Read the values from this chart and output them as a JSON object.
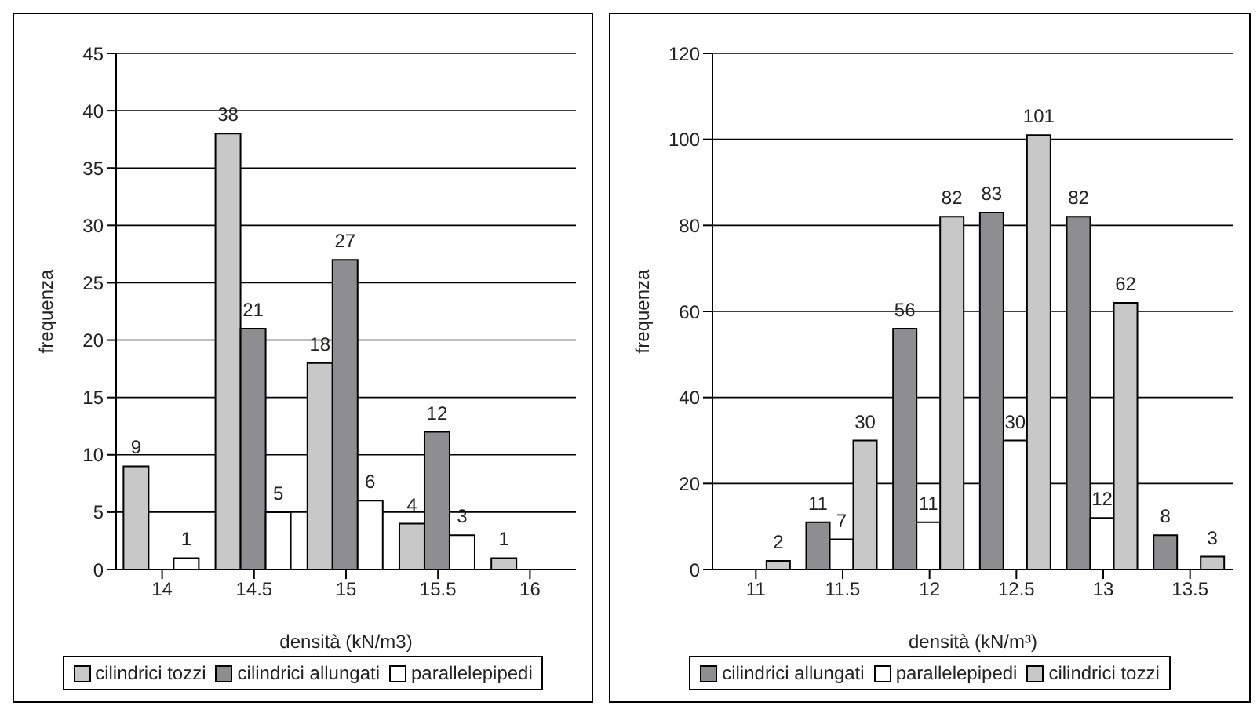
{
  "chart_data": [
    {
      "type": "bar",
      "xlabel": "densità (kN/m3)",
      "ylabel": "frequenza",
      "categories": [
        "14",
        "14.5",
        "15",
        "15.5",
        "16"
      ],
      "series": [
        {
          "name": "cilindrici tozzi",
          "color": "#c8c8c8",
          "values": [
            9,
            38,
            18,
            4,
            1
          ]
        },
        {
          "name": "cilindrici allungati",
          "color": "#8e8e92",
          "values": [
            null,
            21,
            27,
            12,
            null
          ]
        },
        {
          "name": "parallelepipedi",
          "color": "#ffffff",
          "values": [
            1,
            5,
            6,
            3,
            null
          ]
        }
      ],
      "ylim": [
        0,
        45
      ],
      "yticks": [
        0,
        5,
        10,
        15,
        20,
        25,
        30,
        35,
        40,
        45
      ],
      "grid": "y",
      "legend": "bottom",
      "data_labels": true
    },
    {
      "type": "bar",
      "xlabel": "densità  (kN/m³)",
      "ylabel": "frequenza",
      "categories": [
        "11",
        "11.5",
        "12",
        "12.5",
        "13",
        "13.5"
      ],
      "series": [
        {
          "name": "cilindrici allungati",
          "color": "#8e8e92",
          "values": [
            null,
            11,
            56,
            83,
            82,
            8
          ]
        },
        {
          "name": "parallelepipedi",
          "color": "#ffffff",
          "values": [
            null,
            7,
            11,
            30,
            12,
            null
          ]
        },
        {
          "name": "cilindrici tozzi",
          "color": "#c8c8c8",
          "values": [
            2,
            30,
            82,
            101,
            62,
            3
          ]
        }
      ],
      "ylim": [
        0,
        120
      ],
      "yticks": [
        0,
        20,
        40,
        60,
        80,
        100,
        120
      ],
      "grid": "y",
      "legend": "bottom",
      "data_labels": true
    }
  ]
}
